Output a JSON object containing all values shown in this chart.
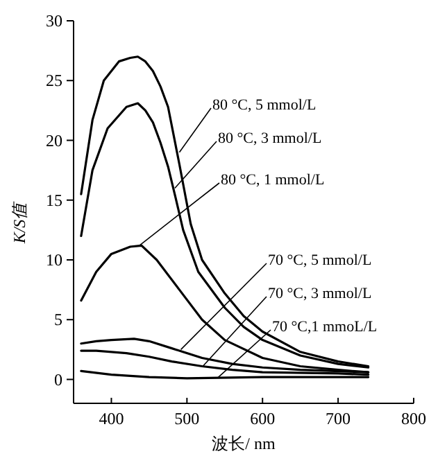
{
  "chart_data": {
    "type": "line",
    "xlabel": "波长/ nm",
    "ylabel": "K/S值",
    "xlim": [
      350,
      800
    ],
    "ylim": [
      -2,
      30
    ],
    "xticks": [
      400,
      500,
      600,
      700,
      800
    ],
    "yticks": [
      0,
      5,
      10,
      15,
      20,
      25,
      30
    ],
    "grid": false,
    "marker": "none",
    "line_style": "solid",
    "series": [
      {
        "color": "#000000",
        "x": [
          360,
          375,
          390,
          410,
          425,
          435,
          445,
          455,
          465,
          475,
          490,
          505,
          520,
          550,
          575,
          600,
          650,
          700,
          740
        ],
        "values": [
          15.5,
          21.7,
          25,
          26.6,
          26.9,
          27,
          26.6,
          25.8,
          24.5,
          22.8,
          18,
          13,
          10,
          7.2,
          5.3,
          4,
          2.3,
          1.5,
          1.1
        ]
      },
      {
        "color": "#000000",
        "x": [
          360,
          375,
          395,
          420,
          435,
          445,
          455,
          465,
          475,
          485,
          495,
          515,
          550,
          575,
          600,
          650,
          700,
          740
        ],
        "values": [
          12,
          17.5,
          21,
          22.8,
          23.1,
          22.5,
          21.5,
          19.8,
          17.8,
          15.2,
          12.5,
          9,
          6,
          4.4,
          3.3,
          2,
          1.3,
          1
        ]
      },
      {
        "color": "#000000",
        "x": [
          360,
          380,
          400,
          425,
          440,
          460,
          490,
          520,
          550,
          600,
          650,
          700,
          740
        ],
        "values": [
          6.6,
          9,
          10.5,
          11.1,
          11.2,
          10,
          7.5,
          5,
          3.3,
          1.8,
          1.1,
          0.8,
          0.6
        ]
      },
      {
        "color": "#000000",
        "x": [
          360,
          380,
          400,
          430,
          450,
          480,
          520,
          560,
          600,
          650,
          740
        ],
        "values": [
          3,
          3.2,
          3.3,
          3.4,
          3.2,
          2.6,
          1.8,
          1.3,
          1,
          0.8,
          0.6
        ]
      },
      {
        "color": "#000000",
        "x": [
          360,
          380,
          420,
          450,
          480,
          520,
          560,
          600,
          700,
          740
        ],
        "values": [
          2.4,
          2.4,
          2.2,
          1.9,
          1.5,
          1.1,
          0.8,
          0.6,
          0.5,
          0.4
        ]
      },
      {
        "color": "#000000",
        "x": [
          360,
          400,
          450,
          500,
          600,
          740
        ],
        "values": [
          0.7,
          0.4,
          0.2,
          0.1,
          0.2,
          0.2
        ]
      }
    ],
    "annotations": [
      {
        "text": "80 °C, 5 mmol/L",
        "x": 490,
        "y": 19
      },
      {
        "text": "80 °C, 3 mmol/L",
        "x": 484,
        "y": 16
      },
      {
        "text": "80 °C, 1 mmol/L",
        "x": 437,
        "y": 11.2
      },
      {
        "text": "70 °C, 5 mmol/L",
        "x": 492,
        "y": 2.5
      },
      {
        "text": "70 °C, 3 mmol/L",
        "x": 521,
        "y": 1.1
      },
      {
        "text": "70 °C,1 mmoL/L",
        "x": 541,
        "y": 0.15
      }
    ]
  }
}
